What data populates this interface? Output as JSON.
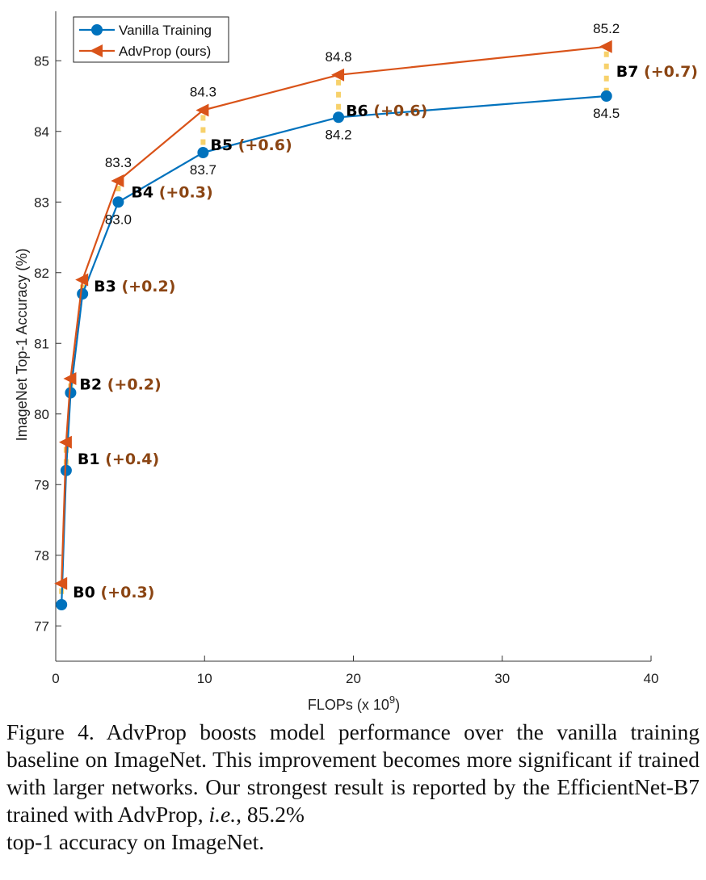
{
  "chart_data": {
    "type": "line",
    "xlabel": "FLOPs (x 10",
    "xlabel_exponent": "9",
    "xlabel_close": ")",
    "ylabel": "ImageNet Top-1 Accuracy (%)",
    "xlim": [
      0,
      40
    ],
    "ylim": [
      76.5,
      85.7
    ],
    "xticks": [
      0,
      10,
      20,
      30,
      40
    ],
    "yticks": [
      77,
      78,
      79,
      80,
      81,
      82,
      83,
      84,
      85
    ],
    "legend_position": "top-left",
    "series": [
      {
        "name": "Vanilla Training",
        "color": "#0072BD",
        "marker": "circle",
        "x": [
          0.39,
          0.7,
          1.0,
          1.8,
          4.2,
          9.9,
          19,
          37
        ],
        "y": [
          77.3,
          79.2,
          80.3,
          81.7,
          83.0,
          83.7,
          84.2,
          84.5
        ]
      },
      {
        "name": "AdvProp (ours)",
        "color": "#D95319",
        "marker": "triangle-left",
        "x": [
          0.39,
          0.7,
          1.0,
          1.8,
          4.2,
          9.9,
          19,
          37
        ],
        "y": [
          77.6,
          79.6,
          80.5,
          81.9,
          83.3,
          84.3,
          84.8,
          85.2
        ]
      }
    ],
    "models": [
      {
        "name": "B0",
        "gain": "(+0.3)"
      },
      {
        "name": "B1",
        "gain": "(+0.4)"
      },
      {
        "name": "B2",
        "gain": "(+0.2)"
      },
      {
        "name": "B3",
        "gain": "(+0.2)"
      },
      {
        "name": "B4",
        "gain": "(+0.3)"
      },
      {
        "name": "B5",
        "gain": "(+0.6)"
      },
      {
        "name": "B6",
        "gain": "(+0.6)"
      },
      {
        "name": "B7",
        "gain": "(+0.7)"
      }
    ],
    "point_labels": [
      {
        "text": "83.3",
        "series": 1,
        "index": 4
      },
      {
        "text": "84.3",
        "series": 1,
        "index": 5
      },
      {
        "text": "84.8",
        "series": 1,
        "index": 6
      },
      {
        "text": "85.2",
        "series": 1,
        "index": 7
      },
      {
        "text": "83.0",
        "series": 0,
        "index": 4
      },
      {
        "text": "83.7",
        "series": 0,
        "index": 5
      },
      {
        "text": "84.2",
        "series": 0,
        "index": 6
      },
      {
        "text": "84.5",
        "series": 0,
        "index": 7
      }
    ],
    "gain_connector_color": "#F7D16B",
    "gain_text_color": "#8B4513"
  },
  "caption": {
    "body": "Figure 4. AdvProp boosts model performance over the vanilla training baseline on ImageNet. This improvement becomes more significant if trained with larger networks. Our strongest result is reported by the EfficientNet-B7 trained with AdvProp, ",
    "emphasis": "i.e.",
    "tail": ", 85.2%",
    "last_line": "top-1 accuracy on ImageNet."
  }
}
